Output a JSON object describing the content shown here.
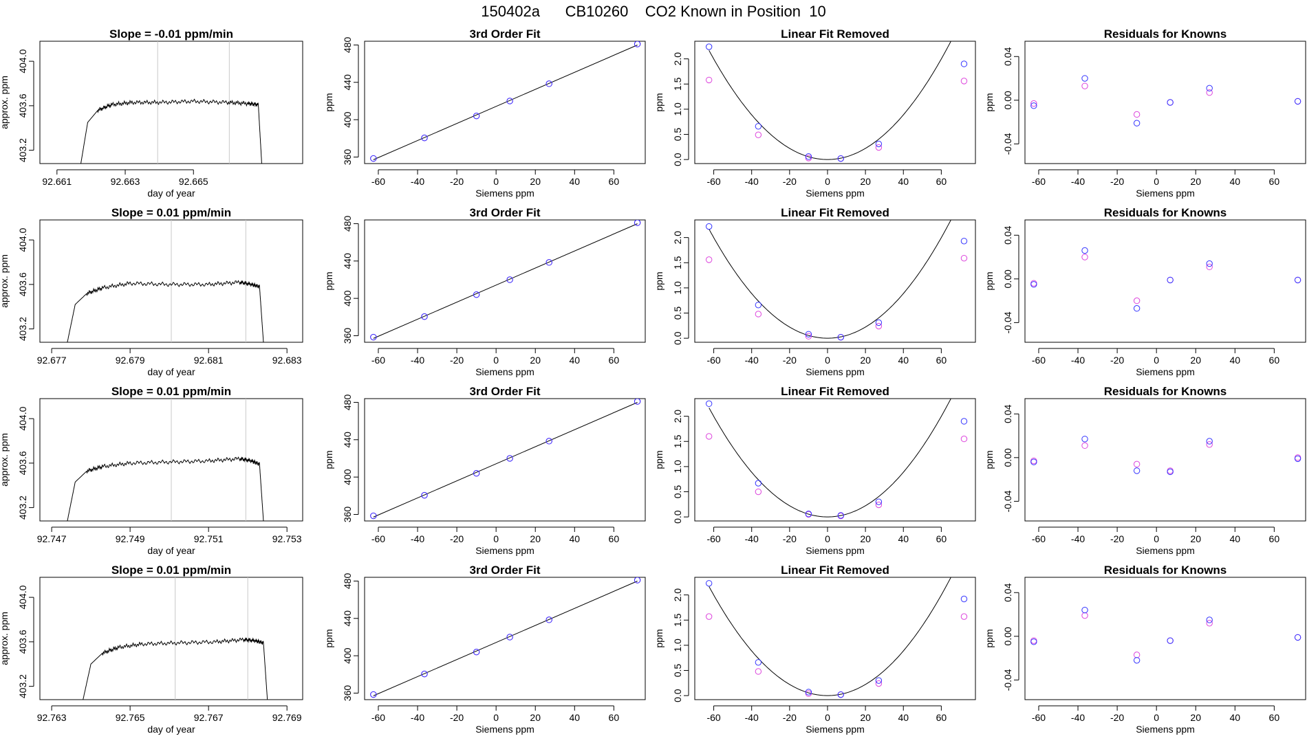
{
  "page": {
    "title": "150402a      CB10260    CO2 Known in Position  10"
  },
  "chart_data": [
    {
      "type": "line",
      "title": "Slope =  -0.01  ppm/min",
      "xlabel": "day of year",
      "ylabel": "approx. ppm",
      "xlim": [
        92.6605,
        92.6682
      ],
      "ylim": [
        403.08,
        404.18
      ],
      "xticks": [
        "92.661",
        "92.663",
        "92.665"
      ],
      "yticks": [
        "403.2",
        "403.6",
        "404.0"
      ],
      "x": [
        92.6617,
        92.6619,
        92.6622,
        92.6626,
        92.6632,
        92.664,
        92.665,
        92.666,
        92.6666,
        92.6669,
        92.667
      ],
      "y": [
        403.08,
        403.45,
        403.56,
        403.61,
        403.63,
        403.63,
        403.64,
        403.63,
        403.62,
        403.61,
        403.08
      ],
      "vlines": [
        92.66395,
        92.66605
      ],
      "line_color": "#000000",
      "vline_color": "#c8c8c8"
    },
    {
      "type": "scatter",
      "title": "3rd Order Fit",
      "xlabel": "Siemens ppm",
      "ylabel": "ppm",
      "xlim": [
        -67,
        76
      ],
      "ylim": [
        353,
        484
      ],
      "xticks": [
        "-60",
        "-40",
        "-20",
        "0",
        "20",
        "40",
        "60"
      ],
      "yticks": [
        "360",
        "400",
        "440",
        "480"
      ],
      "x": [
        -62.5,
        -36.5,
        -10,
        7,
        27,
        72
      ],
      "y": [
        358.5,
        380.5,
        404,
        420,
        438.5,
        481
      ],
      "series": [
        {
          "name": "",
          "color": "#3333ff",
          "values": [
            358.5,
            380.5,
            404,
            420,
            438.5,
            481
          ]
        },
        {
          "name": "",
          "color": "#dd44dd",
          "values": [
            358.5,
            380.5,
            404,
            420,
            438.5,
            481
          ]
        }
      ]
    },
    {
      "type": "scatter",
      "title": "Linear Fit Removed",
      "xlabel": "Siemens ppm",
      "ylabel": "ppm",
      "xlim": [
        -70,
        78
      ],
      "ylim": [
        -0.08,
        2.35
      ],
      "xticks": [
        "-60",
        "-40",
        "-20",
        "0",
        "20",
        "40",
        "60"
      ],
      "yticks": [
        "0.0",
        "0.5",
        "1.0",
        "1.5",
        "2.0"
      ],
      "x": [
        -62.5,
        -36.5,
        -10,
        7,
        27,
        72
      ],
      "series": [
        {
          "name": "",
          "color": "#3333ff",
          "values": [
            2.24,
            0.66,
            0.06,
            0.02,
            0.31,
            1.9
          ]
        },
        {
          "name": "",
          "color": "#dd44dd",
          "values": [
            1.58,
            0.49,
            0.03,
            0.02,
            0.24,
            1.56
          ]
        }
      ],
      "curve": {
        "x0": 0,
        "vertex": 0.0,
        "a": 0.000555
      }
    },
    {
      "type": "scatter",
      "title": "Residuals for Knowns",
      "xlabel": "Siemens ppm",
      "ylabel": "ppm",
      "xlim": [
        -67,
        76
      ],
      "ylim": [
        -0.058,
        0.054
      ],
      "xticks": [
        "-60",
        "-40",
        "-20",
        "0",
        "20",
        "40",
        "60"
      ],
      "yticks": [
        "-0.04",
        "0.00",
        "0.04"
      ],
      "x": [
        -62.5,
        -36.5,
        -10,
        7,
        27,
        72
      ],
      "series": [
        {
          "name": "",
          "color": "#3333ff",
          "values": [
            -0.005,
            0.02,
            -0.021,
            -0.002,
            0.011,
            -0.001
          ]
        },
        {
          "name": "",
          "color": "#dd44dd",
          "values": [
            -0.003,
            0.013,
            -0.013,
            -0.002,
            0.007,
            -0.001
          ]
        }
      ]
    },
    {
      "type": "line",
      "title": "Slope =  0.01  ppm/min",
      "xlabel": "day of year",
      "ylabel": "approx. ppm",
      "xlim": [
        92.6767,
        92.6834
      ],
      "ylim": [
        403.08,
        404.18
      ],
      "xticks": [
        "92.677",
        "92.679",
        "92.681",
        "92.683"
      ],
      "yticks": [
        "403.2",
        "403.6",
        "404.0"
      ],
      "x": [
        92.6774,
        92.6776,
        92.6779,
        92.6783,
        92.679,
        92.68,
        92.681,
        92.6818,
        92.6821,
        92.6823,
        92.6824
      ],
      "y": [
        403.08,
        403.42,
        403.52,
        403.57,
        403.61,
        403.6,
        403.6,
        403.62,
        403.6,
        403.58,
        403.08
      ],
      "vlines": [
        92.68005,
        92.68195
      ],
      "line_color": "#000000",
      "vline_color": "#c8c8c8"
    },
    {
      "type": "scatter",
      "title": "3rd Order Fit",
      "xlabel": "Siemens ppm",
      "ylabel": "ppm",
      "xlim": [
        -67,
        76
      ],
      "ylim": [
        353,
        484
      ],
      "xticks": [
        "-60",
        "-40",
        "-20",
        "0",
        "20",
        "40",
        "60"
      ],
      "yticks": [
        "360",
        "400",
        "440",
        "480"
      ],
      "x": [
        -62.5,
        -36.5,
        -10,
        7,
        27,
        72
      ],
      "y": [
        358.5,
        380.5,
        404,
        420,
        438.5,
        481
      ],
      "series": [
        {
          "name": "",
          "color": "#3333ff",
          "values": [
            358.5,
            380.5,
            404,
            420,
            438.5,
            481
          ]
        },
        {
          "name": "",
          "color": "#dd44dd",
          "values": [
            358.5,
            380.5,
            404,
            420,
            438.5,
            481
          ]
        }
      ]
    },
    {
      "type": "scatter",
      "title": "Linear Fit Removed",
      "xlabel": "Siemens ppm",
      "ylabel": "ppm",
      "xlim": [
        -70,
        78
      ],
      "ylim": [
        -0.08,
        2.35
      ],
      "xticks": [
        "-60",
        "-40",
        "-20",
        "0",
        "20",
        "40",
        "60"
      ],
      "yticks": [
        "0.0",
        "0.5",
        "1.0",
        "1.5",
        "2.0"
      ],
      "x": [
        -62.5,
        -36.5,
        -10,
        7,
        27,
        72
      ],
      "series": [
        {
          "name": "",
          "color": "#3333ff",
          "values": [
            2.22,
            0.66,
            0.08,
            0.02,
            0.31,
            1.93
          ]
        },
        {
          "name": "",
          "color": "#dd44dd",
          "values": [
            1.56,
            0.48,
            0.04,
            0.02,
            0.24,
            1.59
          ]
        }
      ],
      "curve": {
        "x0": 0,
        "vertex": 0.0,
        "a": 0.000555
      }
    },
    {
      "type": "scatter",
      "title": "Residuals for Knowns",
      "xlabel": "Siemens ppm",
      "ylabel": "ppm",
      "xlim": [
        -67,
        76
      ],
      "ylim": [
        -0.058,
        0.054
      ],
      "xticks": [
        "-60",
        "-40",
        "-20",
        "0",
        "20",
        "40",
        "60"
      ],
      "yticks": [
        "-0.04",
        "0.00",
        "0.04"
      ],
      "x": [
        -62.5,
        -36.5,
        -10,
        7,
        27,
        72
      ],
      "series": [
        {
          "name": "",
          "color": "#3333ff",
          "values": [
            -0.005,
            0.026,
            -0.027,
            -0.001,
            0.014,
            -0.001
          ]
        },
        {
          "name": "",
          "color": "#dd44dd",
          "values": [
            -0.004,
            0.02,
            -0.02,
            -0.001,
            0.011,
            -0.001
          ]
        }
      ]
    },
    {
      "type": "line",
      "title": "Slope =  0.01  ppm/min",
      "xlabel": "day of year",
      "ylabel": "approx. ppm",
      "xlim": [
        92.7467,
        92.7534
      ],
      "ylim": [
        403.08,
        404.18
      ],
      "xticks": [
        "92.747",
        "92.749",
        "92.751",
        "92.753"
      ],
      "yticks": [
        "403.2",
        "403.6",
        "404.0"
      ],
      "x": [
        92.7474,
        92.7476,
        92.7479,
        92.7483,
        92.749,
        92.75,
        92.751,
        92.7518,
        92.7521,
        92.7523,
        92.7524
      ],
      "y": [
        403.08,
        403.43,
        403.53,
        403.57,
        403.6,
        403.61,
        403.62,
        403.64,
        403.62,
        403.59,
        403.08
      ],
      "vlines": [
        92.75005,
        92.75195
      ],
      "line_color": "#000000",
      "vline_color": "#c8c8c8"
    },
    {
      "type": "scatter",
      "title": "3rd Order Fit",
      "xlabel": "Siemens ppm",
      "ylabel": "ppm",
      "xlim": [
        -67,
        76
      ],
      "ylim": [
        353,
        484
      ],
      "xticks": [
        "-60",
        "-40",
        "-20",
        "0",
        "20",
        "40",
        "60"
      ],
      "yticks": [
        "360",
        "400",
        "440",
        "480"
      ],
      "x": [
        -62.5,
        -36.5,
        -10,
        7,
        27,
        72
      ],
      "y": [
        358.5,
        380.5,
        404,
        420,
        438.5,
        481
      ],
      "series": [
        {
          "name": "",
          "color": "#3333ff",
          "values": [
            358.5,
            380.5,
            404,
            420,
            438.5,
            481
          ]
        },
        {
          "name": "",
          "color": "#dd44dd",
          "values": [
            358.5,
            380.5,
            404,
            420,
            438.5,
            481
          ]
        }
      ]
    },
    {
      "type": "scatter",
      "title": "Linear Fit Removed",
      "xlabel": "Siemens ppm",
      "ylabel": "ppm",
      "xlim": [
        -70,
        78
      ],
      "ylim": [
        -0.08,
        2.35
      ],
      "xticks": [
        "-60",
        "-40",
        "-20",
        "0",
        "20",
        "40",
        "60"
      ],
      "yticks": [
        "0.0",
        "0.5",
        "1.0",
        "1.5",
        "2.0"
      ],
      "x": [
        -62.5,
        -36.5,
        -10,
        7,
        27,
        72
      ],
      "series": [
        {
          "name": "",
          "color": "#3333ff",
          "values": [
            2.25,
            0.67,
            0.06,
            0.03,
            0.3,
            1.9
          ]
        },
        {
          "name": "",
          "color": "#dd44dd",
          "values": [
            1.6,
            0.5,
            0.05,
            0.02,
            0.24,
            1.55
          ]
        }
      ],
      "curve": {
        "x0": 0,
        "vertex": 0.0,
        "a": 0.000555
      }
    },
    {
      "type": "scatter",
      "title": "Residuals for Knowns",
      "xlabel": "Siemens ppm",
      "ylabel": "ppm",
      "xlim": [
        -67,
        76
      ],
      "ylim": [
        -0.058,
        0.054
      ],
      "xticks": [
        "-60",
        "-40",
        "-20",
        "0",
        "20",
        "40",
        "60"
      ],
      "yticks": [
        "-0.04",
        "0.00",
        "0.04"
      ],
      "x": [
        -62.5,
        -36.5,
        -10,
        7,
        27,
        72
      ],
      "series": [
        {
          "name": "",
          "color": "#3333ff",
          "values": [
            -0.004,
            0.017,
            -0.012,
            -0.013,
            0.015,
            -0.001
          ]
        },
        {
          "name": "",
          "color": "#dd44dd",
          "values": [
            -0.003,
            0.011,
            -0.006,
            -0.012,
            0.012,
            0.0
          ]
        }
      ]
    },
    {
      "type": "line",
      "title": "Slope =  0.01  ppm/min",
      "xlabel": "day of year",
      "ylabel": "approx. ppm",
      "xlim": [
        92.7627,
        92.7694
      ],
      "ylim": [
        403.08,
        404.18
      ],
      "xticks": [
        "92.763",
        "92.765",
        "92.767",
        "92.769"
      ],
      "yticks": [
        "403.2",
        "403.6",
        "404.0"
      ],
      "x": [
        92.7638,
        92.764,
        92.7643,
        92.7647,
        92.7653,
        92.7662,
        92.7672,
        92.7679,
        92.7682,
        92.7684,
        92.7685
      ],
      "y": [
        403.08,
        403.4,
        403.5,
        403.55,
        403.58,
        403.59,
        403.6,
        403.62,
        403.61,
        403.59,
        403.08
      ],
      "vlines": [
        92.76615,
        92.768
      ],
      "line_color": "#000000",
      "vline_color": "#c8c8c8"
    },
    {
      "type": "scatter",
      "title": "3rd Order Fit",
      "xlabel": "Siemens ppm",
      "ylabel": "ppm",
      "xlim": [
        -67,
        76
      ],
      "ylim": [
        353,
        484
      ],
      "xticks": [
        "-60",
        "-40",
        "-20",
        "0",
        "20",
        "40",
        "60"
      ],
      "yticks": [
        "360",
        "400",
        "440",
        "480"
      ],
      "x": [
        -62.5,
        -36.5,
        -10,
        7,
        27,
        72
      ],
      "y": [
        358.5,
        380.5,
        404,
        420,
        438.5,
        481
      ],
      "series": [
        {
          "name": "",
          "color": "#3333ff",
          "values": [
            358.5,
            380.5,
            404,
            420,
            438.5,
            481
          ]
        },
        {
          "name": "",
          "color": "#dd44dd",
          "values": [
            358.5,
            380.5,
            404,
            420,
            438.5,
            481
          ]
        }
      ]
    },
    {
      "type": "scatter",
      "title": "Linear Fit Removed",
      "xlabel": "Siemens ppm",
      "ylabel": "ppm",
      "xlim": [
        -70,
        78
      ],
      "ylim": [
        -0.08,
        2.35
      ],
      "xticks": [
        "-60",
        "-40",
        "-20",
        "0",
        "20",
        "40",
        "60"
      ],
      "yticks": [
        "0.0",
        "0.5",
        "1.0",
        "1.5",
        "2.0"
      ],
      "x": [
        -62.5,
        -36.5,
        -10,
        7,
        27,
        72
      ],
      "series": [
        {
          "name": "",
          "color": "#3333ff",
          "values": [
            2.23,
            0.66,
            0.07,
            0.02,
            0.3,
            1.92
          ]
        },
        {
          "name": "",
          "color": "#dd44dd",
          "values": [
            1.57,
            0.48,
            0.04,
            0.02,
            0.24,
            1.57
          ]
        }
      ],
      "curve": {
        "x0": 0,
        "vertex": 0.0,
        "a": 0.000555
      }
    },
    {
      "type": "scatter",
      "title": "Residuals for Knowns",
      "xlabel": "Siemens ppm",
      "ylabel": "ppm",
      "xlim": [
        -67,
        76
      ],
      "ylim": [
        -0.058,
        0.054
      ],
      "xticks": [
        "-60",
        "-40",
        "-20",
        "0",
        "20",
        "40",
        "60"
      ],
      "yticks": [
        "-0.04",
        "0.00",
        "0.04"
      ],
      "x": [
        -62.5,
        -36.5,
        -10,
        7,
        27,
        72
      ],
      "series": [
        {
          "name": "",
          "color": "#3333ff",
          "values": [
            -0.005,
            0.024,
            -0.022,
            -0.004,
            0.015,
            -0.001
          ]
        },
        {
          "name": "",
          "color": "#dd44dd",
          "values": [
            -0.004,
            0.019,
            -0.017,
            -0.004,
            0.012,
            -0.001
          ]
        }
      ]
    }
  ]
}
